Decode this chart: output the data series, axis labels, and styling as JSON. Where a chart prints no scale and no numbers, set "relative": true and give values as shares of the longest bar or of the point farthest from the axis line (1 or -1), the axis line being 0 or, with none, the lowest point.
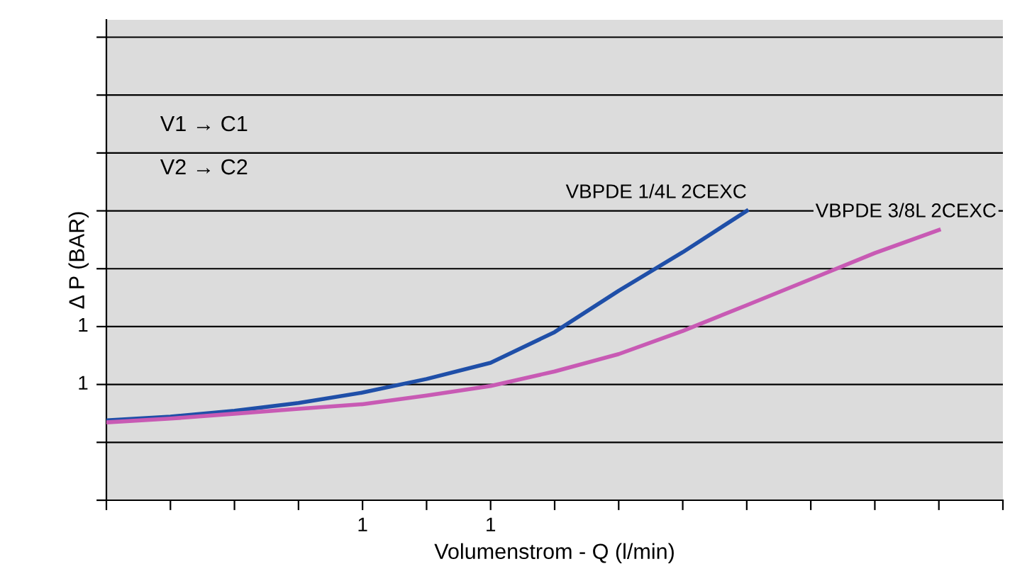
{
  "chart_data": {
    "type": "line",
    "xlabel": "Volumenstrom - Q (l/min)",
    "ylabel": "Δ P (BAR)",
    "relative": true,
    "categories": [
      null,
      null,
      null,
      null,
      "1",
      null,
      "1",
      null,
      null,
      null,
      null,
      null,
      null,
      null,
      null
    ],
    "grid": "y",
    "marker": "none",
    "line_style": "solid",
    "annotations": [
      "V1 → C1",
      "V2 → C2",
      "1",
      "1"
    ],
    "series": [
      {
        "name": "VBPDE 1/4L 2CEXC",
        "color": "#1f4fa8",
        "values": [
          0.276,
          0.289,
          0.309,
          0.336,
          0.372,
          0.419,
          0.475,
          0.581,
          0.724,
          0.857,
          1.0,
          null,
          null,
          null,
          null
        ]
      },
      {
        "name": "VBPDE 3/8L 2CEXC",
        "color": "#c85ab4",
        "values": [
          0.269,
          0.282,
          0.299,
          0.316,
          0.332,
          0.362,
          0.395,
          0.445,
          0.505,
          0.585,
          0.674,
          0.764,
          0.854,
          0.934,
          null
        ]
      }
    ]
  }
}
